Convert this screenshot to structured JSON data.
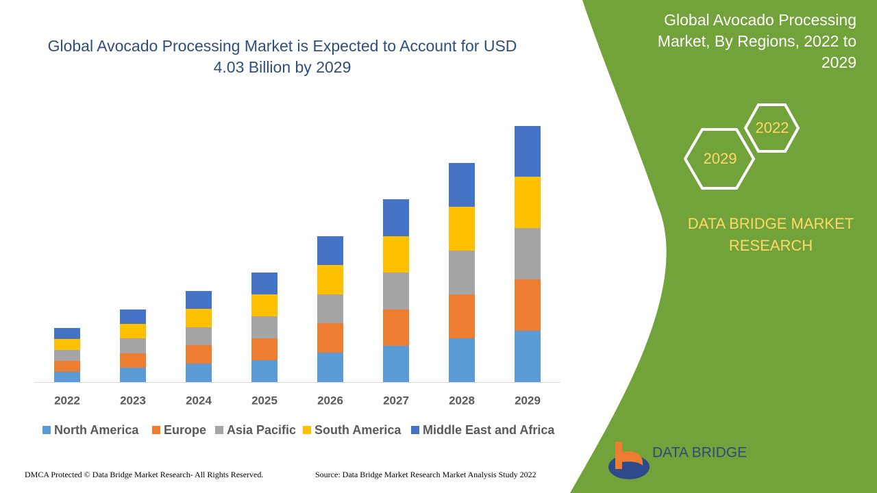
{
  "chart_data": {
    "type": "bar",
    "stacked": true,
    "title": "Global Avocado Processing Market is Expected to Account for USD 4.03 Billion by 2029",
    "categories": [
      "2022",
      "2023",
      "2024",
      "2025",
      "2026",
      "2027",
      "2028",
      "2029"
    ],
    "series": [
      {
        "name": "North America",
        "color": "#5b9bd5",
        "values": [
          15,
          21,
          27,
          32,
          43,
          53,
          64,
          75
        ]
      },
      {
        "name": "Europe",
        "color": "#ed7d31",
        "values": [
          16,
          21,
          27,
          32,
          43,
          53,
          64,
          75
        ]
      },
      {
        "name": "Asia Pacific",
        "color": "#a5a5a5",
        "values": [
          16,
          22,
          26,
          32,
          42,
          54,
          64,
          75
        ]
      },
      {
        "name": "South America",
        "color": "#ffc000",
        "values": [
          16,
          21,
          27,
          32,
          43,
          53,
          64,
          75
        ]
      },
      {
        "name": "Middle East and Africa",
        "color": "#4472c4",
        "values": [
          16,
          21,
          26,
          32,
          42,
          54,
          64,
          74
        ]
      }
    ],
    "ylim": [
      0,
      400
    ]
  },
  "panel": {
    "title": "Global Avocado Processing Market, By Regions, 2022 to 2029",
    "hex_top": "2022",
    "hex_bottom": "2029",
    "brand": "DATA BRIDGE MARKET RESEARCH",
    "logo": "DATA BRIDGE"
  },
  "footer": {
    "copyright": "DMCA Protected © Data Bridge Market Research- All Rights Reserved.",
    "source": "Source: Data Bridge Market Research Market Analysis Study 2022"
  }
}
